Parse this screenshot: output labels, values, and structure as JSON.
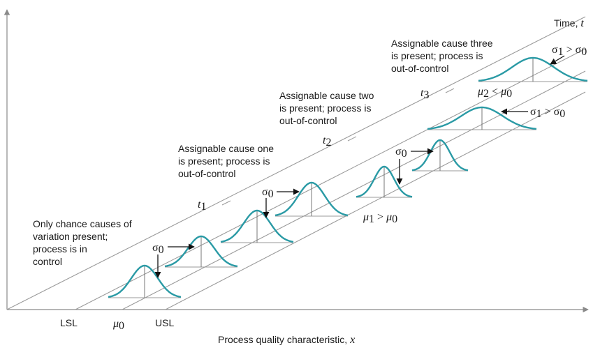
{
  "diagram": {
    "axis_x_label": "Process quality characteristic, ",
    "axis_x_var": "x",
    "axis_t_label": "Time, ",
    "axis_t_var": "t",
    "bottom_labels": {
      "lsl": "LSL",
      "mu0": "μ",
      "mu0_sub": "0",
      "usl": "USL"
    },
    "time_marks": [
      {
        "name": "t",
        "sub": "1"
      },
      {
        "name": "t",
        "sub": "2"
      },
      {
        "name": "t",
        "sub": "3"
      }
    ],
    "annotations": {
      "in_control": [
        "Only chance causes of",
        "variation present;",
        "process is in",
        "control"
      ],
      "cause_one": [
        "Assignable cause one",
        "is present; process is",
        "out-of-control"
      ],
      "cause_two": [
        "Assignable cause two",
        "is present; process is",
        "out-of-control"
      ],
      "cause_three": [
        "Assignable cause three",
        "is present; process is",
        "out-of-control"
      ]
    },
    "sigma0": {
      "sym": "σ",
      "sub": "0"
    },
    "mu1_gt_mu0": {
      "a": "μ",
      "a_sub": "1",
      "op": " > ",
      "b": "μ",
      "b_sub": "0"
    },
    "mu2_lt_mu0": {
      "a": "μ",
      "a_sub": "2",
      "op": " < ",
      "b": "μ",
      "b_sub": "0"
    },
    "sigma1_gt_sigma0": {
      "a": "σ",
      "a_sub": "1",
      "op": " > ",
      "b": "σ",
      "b_sub": "0"
    },
    "curve_color": "#2a9aa5"
  }
}
